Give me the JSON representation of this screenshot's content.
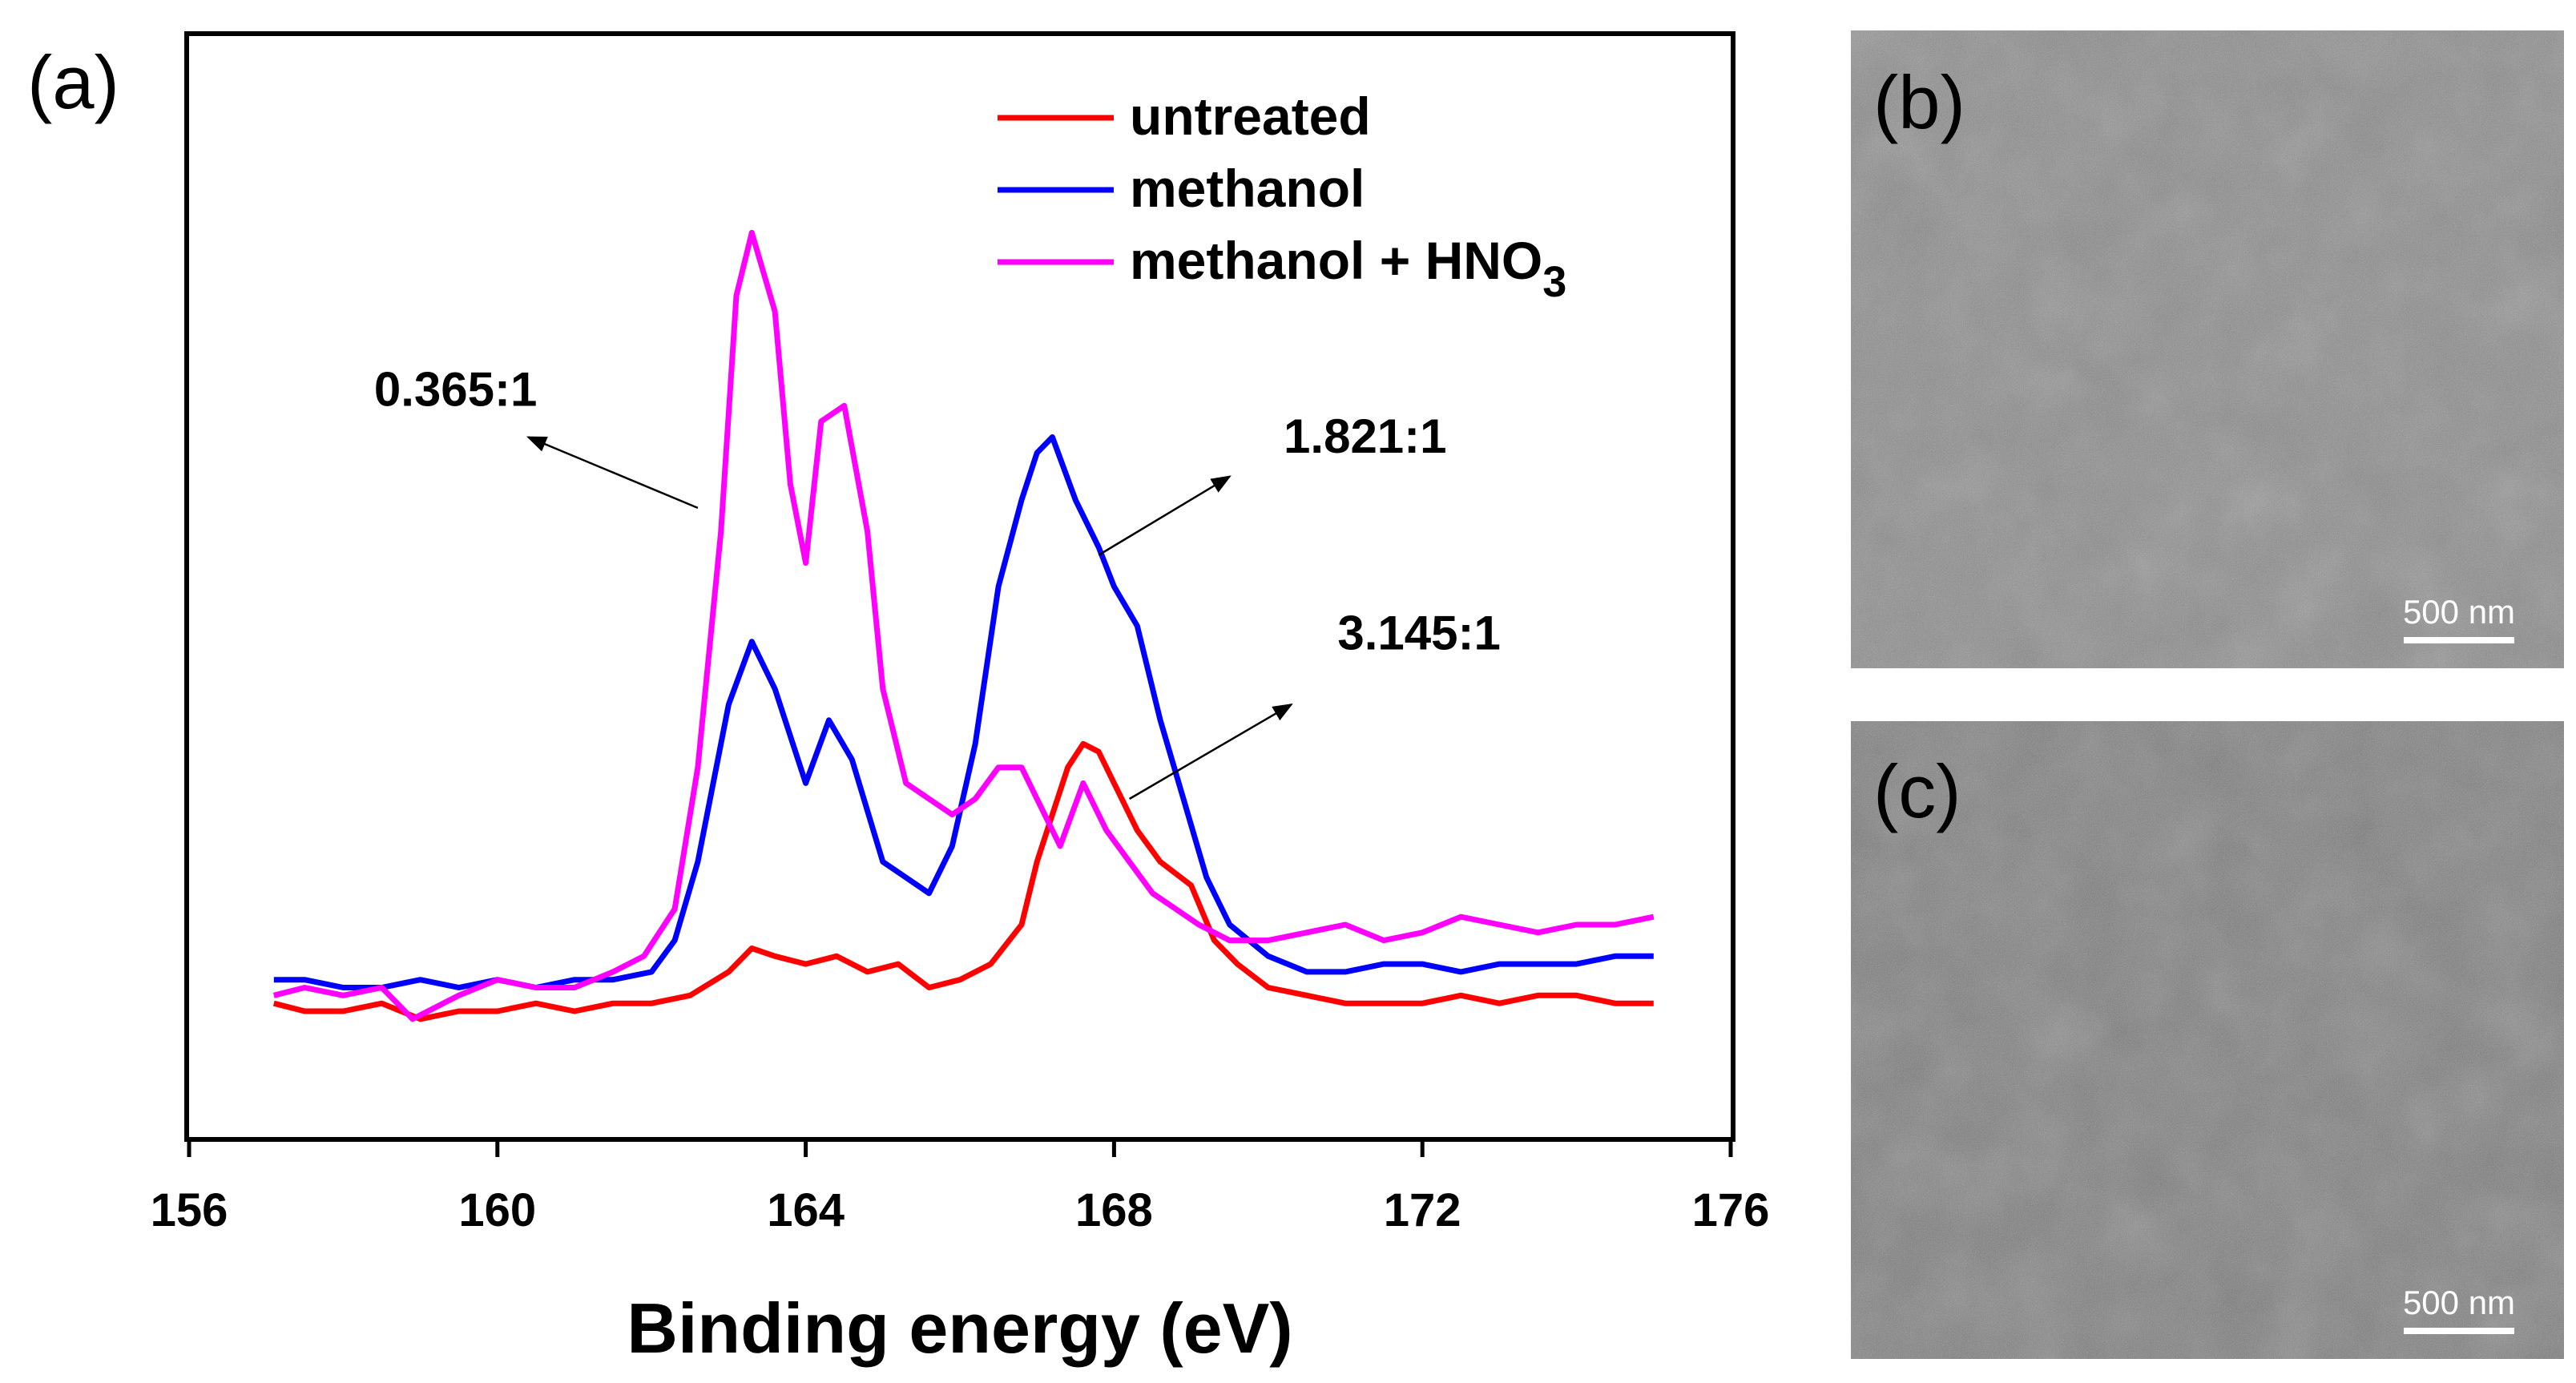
{
  "chart_data": {
    "type": "line",
    "panel_label": "(a)",
    "xlabel": "Binding energy (eV)",
    "ylabel": "",
    "xlim": [
      156,
      176
    ],
    "ylim": [
      -0.15,
      1.25
    ],
    "xticks": [
      156,
      160,
      164,
      168,
      172,
      176
    ],
    "y_ticks_visible": false,
    "grid": false,
    "legend_position": "top-right",
    "series": [
      {
        "name": "untreated",
        "color": "#ff0000",
        "x": [
          157.1,
          157.5,
          158.0,
          158.5,
          159.0,
          159.5,
          160.0,
          160.5,
          161.0,
          161.5,
          162.0,
          162.5,
          163.0,
          163.3,
          163.6,
          164.0,
          164.4,
          164.8,
          165.2,
          165.6,
          166.0,
          166.4,
          166.8,
          167.0,
          167.2,
          167.4,
          167.6,
          167.8,
          168.0,
          168.3,
          168.6,
          169.0,
          169.3,
          169.6,
          170.0,
          170.5,
          171.0,
          171.5,
          172.0,
          172.5,
          173.0,
          173.5,
          174.0,
          174.5,
          175.0
        ],
        "y": [
          0.02,
          0.01,
          0.01,
          0.02,
          0.0,
          0.01,
          0.01,
          0.02,
          0.01,
          0.02,
          0.02,
          0.03,
          0.06,
          0.09,
          0.08,
          0.07,
          0.08,
          0.06,
          0.07,
          0.04,
          0.05,
          0.07,
          0.12,
          0.2,
          0.26,
          0.32,
          0.35,
          0.34,
          0.3,
          0.24,
          0.2,
          0.17,
          0.1,
          0.07,
          0.04,
          0.03,
          0.02,
          0.02,
          0.02,
          0.03,
          0.02,
          0.03,
          0.03,
          0.02,
          0.02
        ]
      },
      {
        "name": "methanol",
        "color": "#0000ff",
        "x": [
          157.1,
          157.5,
          158.0,
          158.5,
          159.0,
          159.5,
          160.0,
          160.5,
          161.0,
          161.5,
          162.0,
          162.3,
          162.6,
          163.0,
          163.3,
          163.6,
          164.0,
          164.3,
          164.6,
          165.0,
          165.3,
          165.6,
          165.9,
          166.2,
          166.5,
          166.8,
          167.0,
          167.2,
          167.5,
          167.8,
          168.0,
          168.3,
          168.6,
          168.9,
          169.2,
          169.5,
          170.0,
          170.5,
          171.0,
          171.5,
          172.0,
          172.5,
          173.0,
          173.5,
          174.0,
          174.5,
          175.0
        ],
        "y": [
          0.05,
          0.05,
          0.04,
          0.04,
          0.05,
          0.04,
          0.05,
          0.04,
          0.05,
          0.05,
          0.06,
          0.1,
          0.2,
          0.4,
          0.48,
          0.42,
          0.3,
          0.38,
          0.33,
          0.2,
          0.18,
          0.16,
          0.22,
          0.35,
          0.55,
          0.66,
          0.72,
          0.74,
          0.66,
          0.6,
          0.55,
          0.5,
          0.38,
          0.28,
          0.18,
          0.12,
          0.08,
          0.06,
          0.06,
          0.07,
          0.07,
          0.06,
          0.07,
          0.07,
          0.07,
          0.08,
          0.08
        ]
      },
      {
        "name": "methanol + HNO3",
        "color": "#ff00ff",
        "x": [
          157.1,
          157.5,
          158.0,
          158.5,
          158.9,
          159.5,
          160.0,
          160.5,
          161.0,
          161.5,
          161.9,
          162.3,
          162.6,
          162.9,
          163.1,
          163.3,
          163.6,
          163.8,
          164.0,
          164.2,
          164.5,
          164.8,
          165.0,
          165.3,
          165.6,
          165.9,
          166.2,
          166.5,
          166.8,
          167.0,
          167.3,
          167.6,
          167.9,
          168.2,
          168.5,
          168.8,
          169.1,
          169.5,
          170.0,
          170.5,
          171.0,
          171.5,
          172.0,
          172.5,
          173.0,
          173.5,
          174.0,
          174.5,
          175.0
        ],
        "y": [
          0.03,
          0.04,
          0.03,
          0.04,
          0.0,
          0.03,
          0.05,
          0.04,
          0.04,
          0.06,
          0.08,
          0.14,
          0.32,
          0.62,
          0.92,
          1.0,
          0.9,
          0.68,
          0.58,
          0.76,
          0.78,
          0.62,
          0.42,
          0.3,
          0.28,
          0.26,
          0.28,
          0.32,
          0.32,
          0.28,
          0.22,
          0.3,
          0.24,
          0.2,
          0.16,
          0.14,
          0.12,
          0.1,
          0.1,
          0.11,
          0.12,
          0.1,
          0.11,
          0.13,
          0.12,
          0.11,
          0.12,
          0.12,
          0.13
        ]
      }
    ],
    "annotations": [
      {
        "text": "0.365:1",
        "x": 158.4,
        "y": 0.78,
        "arrow_from": [
          162.6,
          0.65
        ],
        "arrow_to": [
          160.4,
          0.74
        ]
      },
      {
        "text": "1.821:1",
        "x": 170.2,
        "y": 0.72,
        "arrow_from": [
          167.8,
          0.59
        ],
        "arrow_to": [
          169.5,
          0.69
        ]
      },
      {
        "text": "3.145:1",
        "x": 170.9,
        "y": 0.47,
        "arrow_from": [
          168.2,
          0.28
        ],
        "arrow_to": [
          170.3,
          0.4
        ]
      }
    ]
  },
  "images": [
    {
      "panel_label": "(b)",
      "scale_bar_label": "500 nm"
    },
    {
      "panel_label": "(c)",
      "scale_bar_label": "500 nm"
    }
  ],
  "legend": {
    "untreated": "untreated",
    "methanol": "methanol",
    "hno3_prefix": "methanol + HNO",
    "hno3_subscript": "3"
  }
}
